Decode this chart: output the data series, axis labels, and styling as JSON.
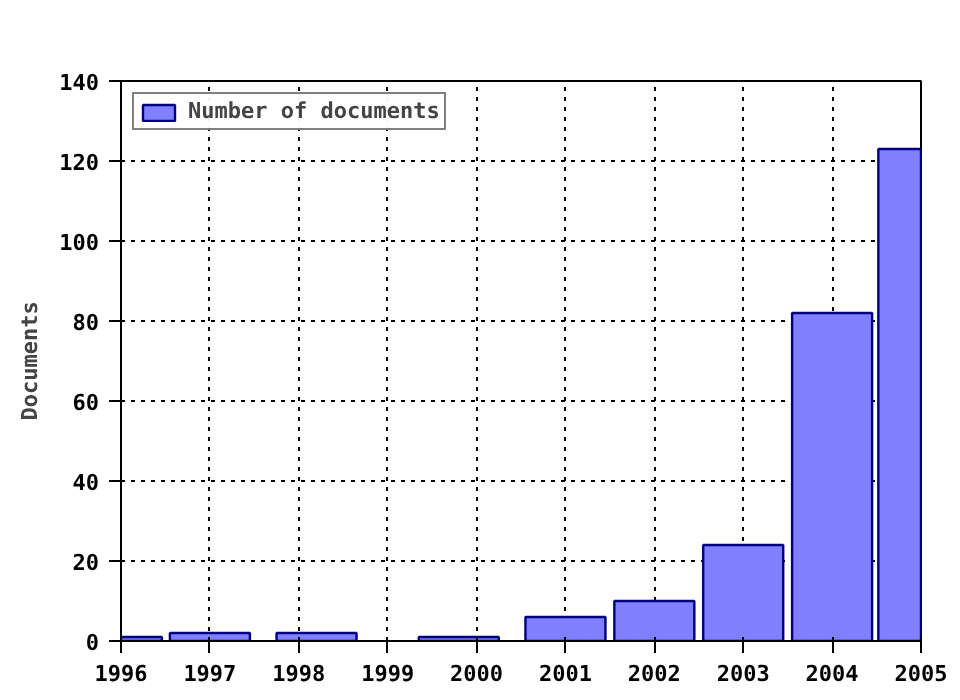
{
  "chart_data": {
    "type": "bar",
    "ylabel": "Documents",
    "x": [
      1996.23,
      1997,
      1998.2,
      1999.8,
      2001,
      2002,
      2003,
      2004,
      2004.76
    ],
    "series": [
      {
        "name": "Number of documents",
        "color": "#8080ff",
        "values": [
          1,
          2,
          2,
          1,
          6,
          10,
          24,
          82,
          123
        ]
      }
    ],
    "xlim": [
      1996,
      2005
    ],
    "xticks": [
      1996,
      1997,
      1998,
      1999,
      2000,
      2001,
      2002,
      2003,
      2004,
      2005
    ],
    "ylim": [
      0,
      140
    ],
    "yticks": [
      0,
      20,
      40,
      60,
      80,
      100,
      120,
      140
    ],
    "grid": true,
    "legend": "top left"
  }
}
